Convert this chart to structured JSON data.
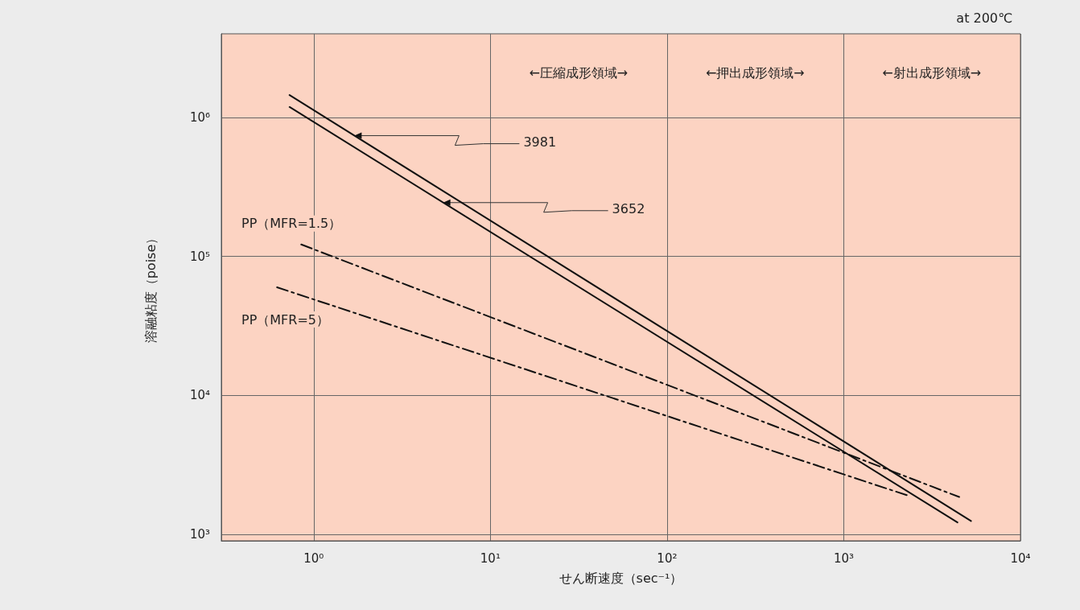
{
  "chart_data": {
    "type": "line",
    "xlabel": "せん断速度（sec⁻¹）",
    "ylabel": "溶融粘度（poise）",
    "log": "xy",
    "grid": true,
    "marker": "none",
    "xlim": [
      0.3,
      10000
    ],
    "ylim": [
      900,
      4000000
    ],
    "xticks": [
      {
        "value": 1,
        "label": "10⁰"
      },
      {
        "value": 10,
        "label": "10¹"
      },
      {
        "value": 100,
        "label": "10²"
      },
      {
        "value": 1000,
        "label": "10³"
      },
      {
        "value": 10000,
        "label": "10⁴"
      }
    ],
    "yticks": [
      {
        "value": 1000,
        "label": "10³"
      },
      {
        "value": 10000,
        "label": "10⁴"
      },
      {
        "value": 100000,
        "label": "10⁵"
      },
      {
        "value": 1000000,
        "label": "10⁶"
      }
    ],
    "series": [
      {
        "color": "#111111",
        "line_style": "solid",
        "x": [
          0.73,
          5250
        ],
        "values": [
          1450000,
          1250
        ]
      },
      {
        "color": "#111111",
        "line_style": "solid",
        "x": [
          0.73,
          4400
        ],
        "values": [
          1190000,
          1220
        ]
      },
      {
        "name": "PP（MFR=1.5）",
        "color": "#111111",
        "line_style": "dashed",
        "x": [
          0.85,
          4500
        ],
        "values": [
          122000,
          1860
        ]
      },
      {
        "name": "PP（MFR=5）",
        "color": "#111111",
        "line_style": "dashed",
        "x": [
          0.62,
          2320
        ],
        "values": [
          60000,
          1900
        ]
      }
    ],
    "annotations": [
      "at 200℃",
      "←圧縮成形領域→",
      "←押出成形領域→",
      "←射出成形領域→",
      {
        "text": "3981",
        "x": 1.7,
        "y": 740000
      },
      {
        "text": "3652",
        "x": 5.4,
        "y": 244000
      }
    ]
  }
}
